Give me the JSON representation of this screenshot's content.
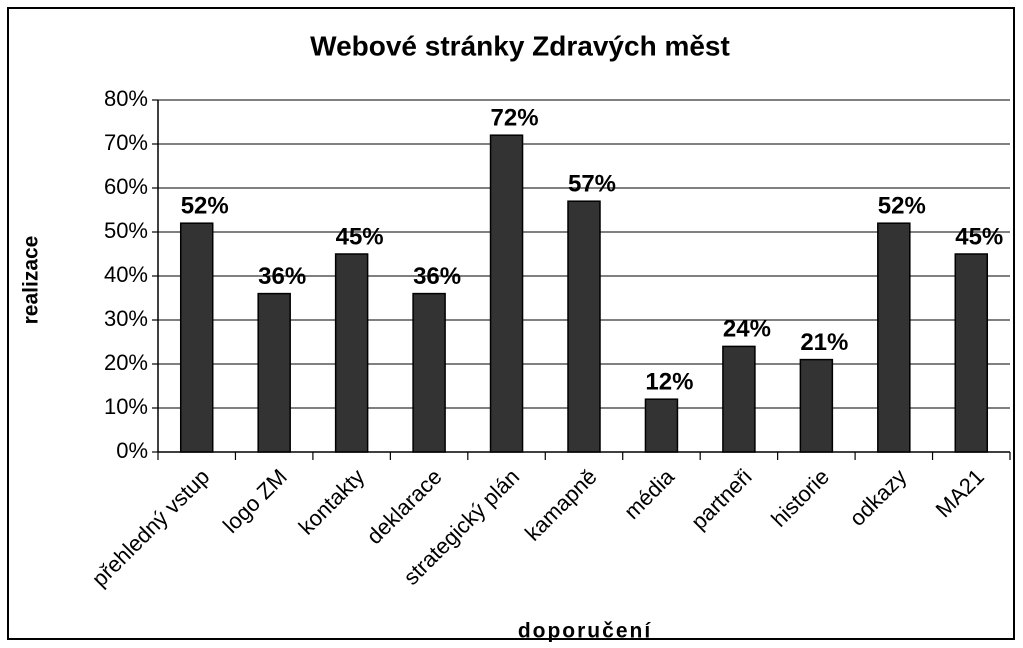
{
  "chart_data": {
    "type": "bar",
    "title": "Webové stránky Zdravých měst",
    "x_label": "doporučení",
    "y_label": "realizace",
    "categories": [
      "přehledný vstup",
      "logo ZM",
      "kontakty",
      "deklarace",
      "strategický plán",
      "kamapně",
      "média",
      "partneři",
      "historie",
      "odkazy",
      "MA21"
    ],
    "values": [
      52,
      36,
      45,
      36,
      72,
      57,
      12,
      24,
      21,
      52,
      45
    ],
    "value_labels": [
      "52%",
      "36%",
      "45%",
      "36%",
      "72%",
      "57%",
      "12%",
      "24%",
      "21%",
      "52%",
      "45%"
    ],
    "color": "#333333",
    "ylim": [
      0,
      80
    ],
    "yticks": [
      {
        "value": 0,
        "label": "0%"
      },
      {
        "value": 10,
        "label": "10%"
      },
      {
        "value": 20,
        "label": "20%"
      },
      {
        "value": 30,
        "label": "30%"
      },
      {
        "value": 40,
        "label": "40%"
      },
      {
        "value": 50,
        "label": "50%"
      },
      {
        "value": 60,
        "label": "60%"
      },
      {
        "value": 70,
        "label": "70%"
      },
      {
        "value": 80,
        "label": "80%"
      }
    ],
    "grid": true
  }
}
